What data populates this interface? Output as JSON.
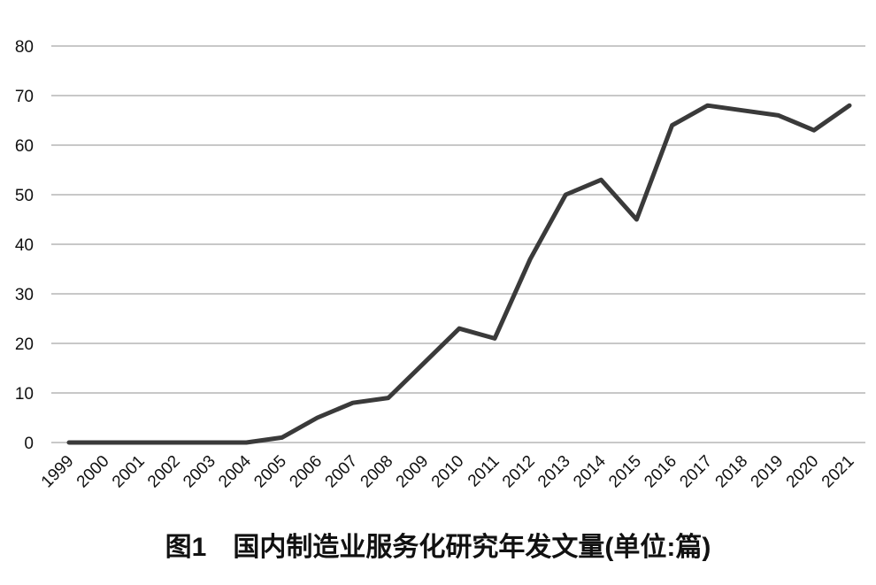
{
  "chart_data": {
    "type": "line",
    "title": "图1　国内制造业服务化研究年发文量(单位:篇)",
    "categories": [
      "1999",
      "2000",
      "2001",
      "2002",
      "2003",
      "2004",
      "2005",
      "2006",
      "2007",
      "2008",
      "2009",
      "2010",
      "2011",
      "2012",
      "2013",
      "2014",
      "2015",
      "2016",
      "2017",
      "2018",
      "2019",
      "2020",
      "2021"
    ],
    "values": [
      0,
      0,
      0,
      0,
      0,
      0,
      1,
      5,
      8,
      9,
      16,
      23,
      21,
      37,
      50,
      53,
      45,
      64,
      68,
      67,
      66,
      63,
      68
    ],
    "color": "#3a3a3a",
    "ylim": [
      0,
      80
    ],
    "yticks": [
      0,
      10,
      20,
      30,
      40,
      50,
      60,
      70,
      80
    ],
    "grid": true
  }
}
